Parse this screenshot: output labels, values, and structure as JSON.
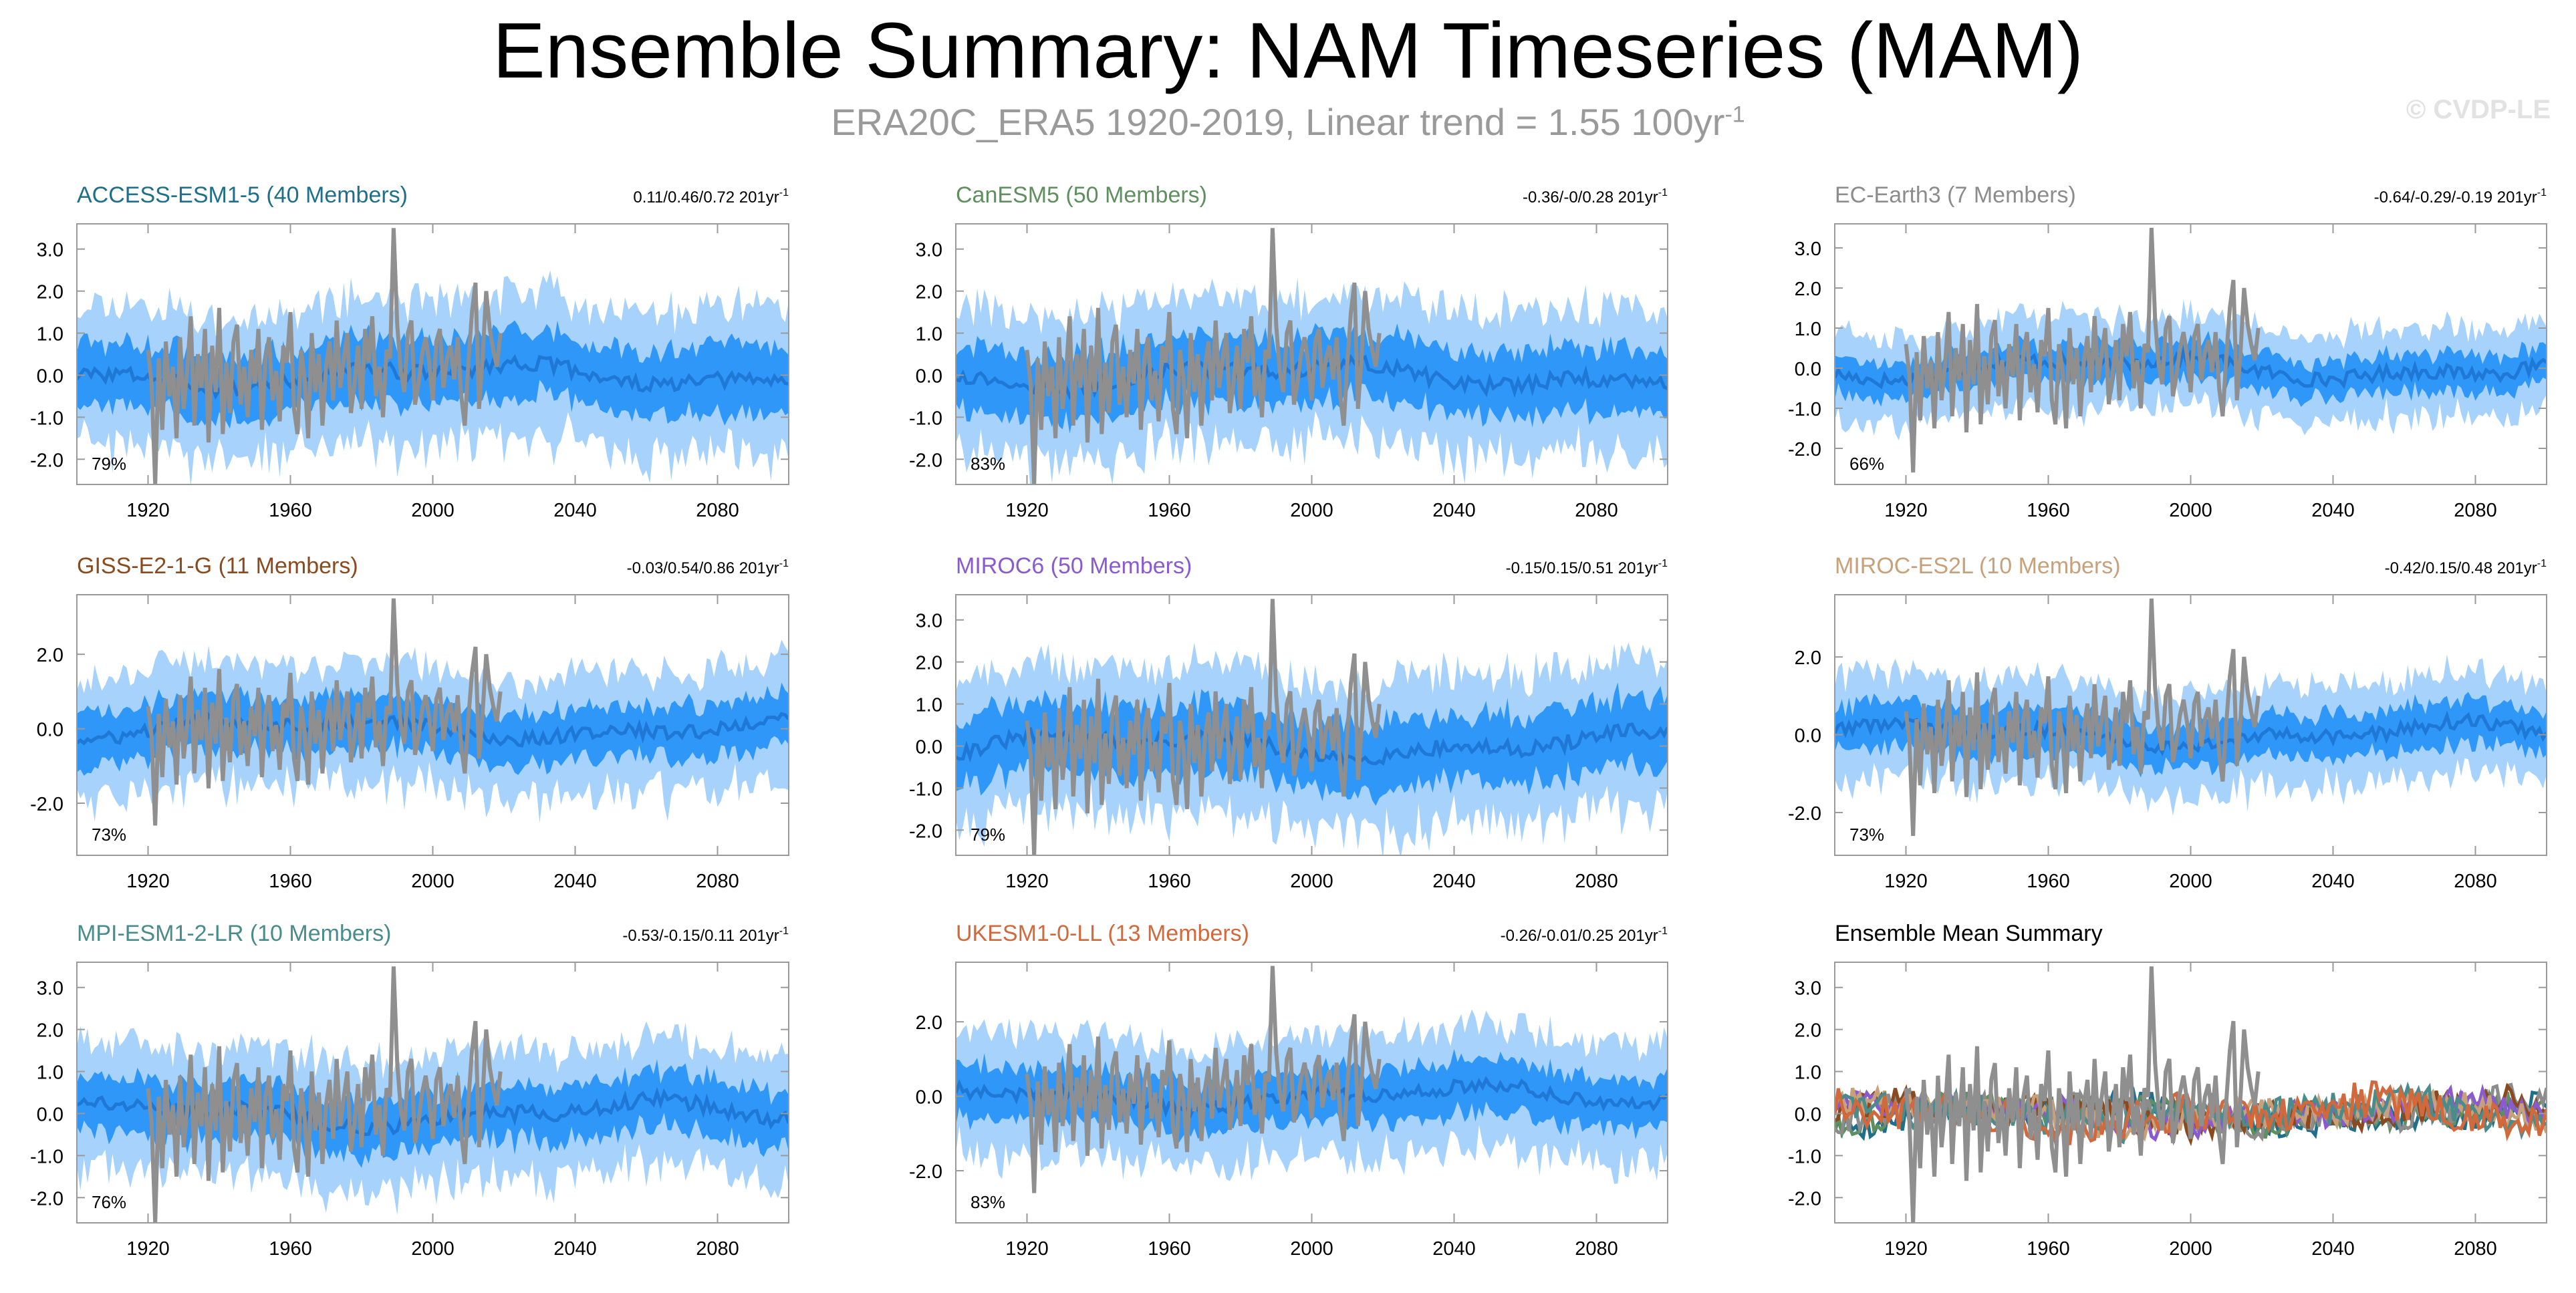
{
  "page": {
    "title": "Ensemble Summary: NAM Timeseries (MAM)",
    "subtitle_text": "ERA20C_ERA5 1920-2019, Linear trend = 1.55 100yr",
    "subtitle_exponent": "-1",
    "watermark": "© CVDP-LE"
  },
  "colors": {
    "band_outer": "#a7d2fb",
    "band_inner": "#2e97f8",
    "ensemble_mean": "#1f78d6",
    "observations": "#8f8f8f"
  },
  "chart_data": [
    {
      "type": "area",
      "title": "ACCESS-ESM1-5 (40 Members)",
      "title_color": "#1f6f8b",
      "trend_text": "0.11/0.46/0.72 201yr",
      "trend_exponent": "-1",
      "percent_label": "79%",
      "xlim": [
        1900,
        2100
      ],
      "ylim": [
        -2.6,
        3.6
      ],
      "ytick_values": [
        3,
        2,
        1,
        0,
        -1,
        -2
      ],
      "ytick_labels": [
        "3.0",
        "2.0",
        "1.0",
        "0.0",
        "-1.0",
        "-2.0"
      ],
      "xtick_values": [
        1920,
        1960,
        2000,
        2040,
        2080
      ],
      "xtick_labels": [
        "1920",
        "1960",
        "2000",
        "2040",
        "2080"
      ],
      "outer_halfwidth": 1.7,
      "inner_halfwidth": 0.75
    },
    {
      "type": "area",
      "title": "CanESM5 (50 Members)",
      "title_color": "#5f8f5f",
      "trend_text": "-0.36/-0/0.28 201yr",
      "trend_exponent": "-1",
      "percent_label": "83%",
      "xlim": [
        1900,
        2100
      ],
      "ylim": [
        -2.6,
        3.6
      ],
      "ytick_values": [
        3,
        2,
        1,
        0,
        -1,
        -2
      ],
      "ytick_labels": [
        "3.0",
        "2.0",
        "1.0",
        "0.0",
        "-1.0",
        "-2.0"
      ],
      "xtick_values": [
        1920,
        1960,
        2000,
        2040,
        2080
      ],
      "xtick_labels": [
        "1920",
        "1960",
        "2000",
        "2040",
        "2080"
      ],
      "outer_halfwidth": 1.7,
      "inner_halfwidth": 0.75
    },
    {
      "type": "area",
      "title": "EC-Earth3 (7 Members)",
      "title_color": "#8c8c8c",
      "trend_text": "-0.64/-0.29/-0.19 201yr",
      "trend_exponent": "-1",
      "percent_label": "66%",
      "xlim": [
        1900,
        2100
      ],
      "ylim": [
        -2.9,
        3.6
      ],
      "ytick_values": [
        3,
        2,
        1,
        0,
        -1,
        -2
      ],
      "ytick_labels": [
        "3.0",
        "2.0",
        "1.0",
        "0.0",
        "-1.0",
        "-2.0"
      ],
      "xtick_values": [
        1920,
        1960,
        2000,
        2040,
        2080
      ],
      "xtick_labels": [
        "1920",
        "1960",
        "2000",
        "2040",
        "2080"
      ],
      "outer_halfwidth": 1.1,
      "inner_halfwidth": 0.45
    },
    {
      "type": "area",
      "title": "GISS-E2-1-G (11 Members)",
      "title_color": "#8b4a1e",
      "trend_text": "-0.03/0.54/0.86 201yr",
      "trend_exponent": "-1",
      "percent_label": "73%",
      "xlim": [
        1900,
        2100
      ],
      "ylim": [
        -3.4,
        3.6
      ],
      "ytick_values": [
        2,
        0,
        -2
      ],
      "ytick_labels": [
        "2.0",
        "0.0",
        "-2.0"
      ],
      "xtick_values": [
        1920,
        1960,
        2000,
        2040,
        2080
      ],
      "xtick_labels": [
        "1920",
        "1960",
        "2000",
        "2040",
        "2080"
      ],
      "outer_halfwidth": 1.6,
      "inner_halfwidth": 0.7
    },
    {
      "type": "area",
      "title": "MIROC6 (50 Members)",
      "title_color": "#8a5ad0",
      "trend_text": "-0.15/0.15/0.51 201yr",
      "trend_exponent": "-1",
      "percent_label": "79%",
      "xlim": [
        1900,
        2100
      ],
      "ylim": [
        -2.6,
        3.6
      ],
      "ytick_values": [
        3,
        2,
        1,
        0,
        -1,
        -2
      ],
      "ytick_labels": [
        "3.0",
        "2.0",
        "1.0",
        "0.0",
        "-1.0",
        "-2.0"
      ],
      "xtick_values": [
        1920,
        1960,
        2000,
        2040,
        2080
      ],
      "xtick_labels": [
        "1920",
        "1960",
        "2000",
        "2040",
        "2080"
      ],
      "outer_halfwidth": 1.75,
      "inner_halfwidth": 0.8
    },
    {
      "type": "area",
      "title": "MIROC-ES2L (10 Members)",
      "title_color": "#c8a07a",
      "trend_text": "-0.42/0.15/0.48 201yr",
      "trend_exponent": "-1",
      "percent_label": "73%",
      "xlim": [
        1900,
        2100
      ],
      "ylim": [
        -3.1,
        3.6
      ],
      "ytick_values": [
        2,
        0,
        -2
      ],
      "ytick_labels": [
        "2.0",
        "0.0",
        "-2.0"
      ],
      "xtick_values": [
        1920,
        1960,
        2000,
        2040,
        2080
      ],
      "xtick_labels": [
        "1920",
        "1960",
        "2000",
        "2040",
        "2080"
      ],
      "outer_halfwidth": 1.3,
      "inner_halfwidth": 0.55
    },
    {
      "type": "area",
      "title": "MPI-ESM1-2-LR (10 Members)",
      "title_color": "#4a8c8c",
      "trend_text": "-0.53/-0.15/0.11 201yr",
      "trend_exponent": "-1",
      "percent_label": "76%",
      "xlim": [
        1900,
        2100
      ],
      "ylim": [
        -2.6,
        3.6
      ],
      "ytick_values": [
        3,
        2,
        1,
        0,
        -1,
        -2
      ],
      "ytick_labels": [
        "3.0",
        "2.0",
        "1.0",
        "0.0",
        "-1.0",
        "-2.0"
      ],
      "xtick_values": [
        1920,
        1960,
        2000,
        2040,
        2080
      ],
      "xtick_labels": [
        "1920",
        "1960",
        "2000",
        "2040",
        "2080"
      ],
      "outer_halfwidth": 1.5,
      "inner_halfwidth": 0.65
    },
    {
      "type": "area",
      "title": "UKESM1-0-LL (13 Members)",
      "title_color": "#d2693c",
      "trend_text": "-0.26/-0.01/0.25 201yr",
      "trend_exponent": "-1",
      "percent_label": "83%",
      "xlim": [
        1900,
        2100
      ],
      "ylim": [
        -3.4,
        3.6
      ],
      "ytick_values": [
        2,
        0,
        -2
      ],
      "ytick_labels": [
        "2.0",
        "0.0",
        "-2.0"
      ],
      "xtick_values": [
        1920,
        1960,
        2000,
        2040,
        2080
      ],
      "xtick_labels": [
        "1920",
        "1960",
        "2000",
        "2040",
        "2080"
      ],
      "outer_halfwidth": 1.6,
      "inner_halfwidth": 0.7
    },
    {
      "type": "line",
      "title": "Ensemble Mean Summary",
      "title_color": "#000000",
      "trend_text": "",
      "trend_exponent": "",
      "percent_label": "",
      "xlim": [
        1900,
        2100
      ],
      "ylim": [
        -2.6,
        3.6
      ],
      "ytick_values": [
        3,
        2,
        1,
        0,
        -1,
        -2
      ],
      "ytick_labels": [
        "3.0",
        "2.0",
        "1.0",
        "0.0",
        "-1.0",
        "-2.0"
      ],
      "xtick_values": [
        1920,
        1960,
        2000,
        2040,
        2080
      ],
      "xtick_labels": [
        "1920",
        "1960",
        "2000",
        "2040",
        "2080"
      ],
      "summary_series": [
        {
          "color": "#1f6f8b",
          "amplitude": 0.3
        },
        {
          "color": "#5f8f5f",
          "amplitude": 0.3
        },
        {
          "color": "#8c8c8c",
          "amplitude": 0.35
        },
        {
          "color": "#8b4a1e",
          "amplitude": 0.35
        },
        {
          "color": "#8a5ad0",
          "amplitude": 0.3
        },
        {
          "color": "#c8a07a",
          "amplitude": 0.35
        },
        {
          "color": "#4a8c8c",
          "amplitude": 0.4
        },
        {
          "color": "#d2693c",
          "amplitude": 0.45
        }
      ]
    }
  ],
  "observations": {
    "name": "ERA20C_ERA5",
    "years": [
      1920,
      1921,
      1922,
      1923,
      1924,
      1925,
      1926,
      1927,
      1928,
      1929,
      1930,
      1931,
      1932,
      1933,
      1934,
      1935,
      1936,
      1937,
      1938,
      1939,
      1940,
      1941,
      1942,
      1943,
      1944,
      1945,
      1946,
      1947,
      1948,
      1949,
      1950,
      1951,
      1952,
      1953,
      1954,
      1955,
      1956,
      1957,
      1958,
      1959,
      1960,
      1961,
      1962,
      1963,
      1964,
      1965,
      1966,
      1967,
      1968,
      1969,
      1970,
      1971,
      1972,
      1973,
      1974,
      1975,
      1976,
      1977,
      1978,
      1979,
      1980,
      1981,
      1982,
      1983,
      1984,
      1985,
      1986,
      1987,
      1988,
      1989,
      1990,
      1991,
      1992,
      1993,
      1994,
      1995,
      1996,
      1997,
      1998,
      1999,
      2000,
      2001,
      2002,
      2003,
      2004,
      2005,
      2006,
      2007,
      2008,
      2009,
      2010,
      2011,
      2012,
      2013,
      2014,
      2015,
      2016,
      2017,
      2018,
      2019
    ],
    "values": [
      0.6,
      -0.2,
      -2.6,
      0.4,
      -1.3,
      0.8,
      -0.5,
      0.2,
      -1.5,
      0.9,
      -0.8,
      0.1,
      1.4,
      -1.2,
      0.5,
      -0.3,
      1.1,
      -1.6,
      0.7,
      -0.4,
      1.6,
      -1.4,
      0.3,
      -0.9,
      0.8,
      1.2,
      -0.7,
      0.2,
      -1.0,
      0.6,
      -0.2,
      1.1,
      -1.3,
      0.4,
      0.9,
      -0.6,
      0.1,
      -1.1,
      0.7,
      0.3,
      1.5,
      -0.8,
      -1.4,
      0.6,
      -0.1,
      -1.5,
      1.0,
      -0.4,
      0.5,
      -1.2,
      0.2,
      0.8,
      -0.6,
      1.3,
      -0.3,
      0.4,
      1.0,
      -0.9,
      -0.2,
      0.7,
      -0.8,
      1.1,
      0.3,
      1.4,
      -0.5,
      0.2,
      -1.0,
      0.6,
      0.4,
      3.5,
      1.2,
      0.1,
      -0.4,
      1.0,
      1.3,
      -0.7,
      -0.2,
      0.5,
      0.9,
      0.3,
      -0.6,
      0.8,
      1.1,
      -0.3,
      0.4,
      0.7,
      -0.1,
      0.9,
      -0.5,
      -1.2,
      0.3,
      1.5,
      2.2,
      -0.8,
      0.4,
      2.0,
      1.1,
      0.6,
      0.2,
      1.0
    ]
  }
}
